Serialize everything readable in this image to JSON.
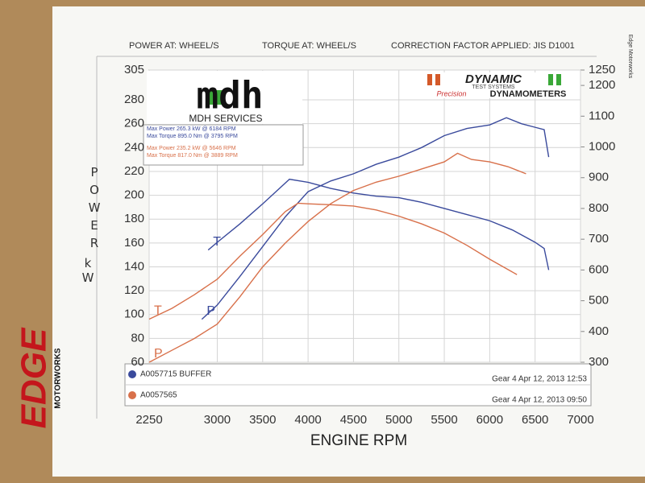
{
  "chart_data": {
    "type": "line",
    "header": [
      "POWER AT: WHEEL/S",
      "TORQUE AT: WHEEL/S",
      "CORRECTION FACTOR APPLIED: JIS D1001"
    ],
    "xlabel": "ENGINE RPM",
    "ylabel": "POWER",
    "ylabel_unit": "kW",
    "xlim": [
      2250,
      7000
    ],
    "xticks": [
      2250,
      3000,
      3500,
      4000,
      4500,
      5000,
      5500,
      6000,
      6500,
      7000
    ],
    "ylim": [
      60,
      305
    ],
    "yticks": [
      60,
      80,
      100,
      120,
      140,
      160,
      180,
      200,
      220,
      240,
      260,
      280,
      305
    ],
    "y2lim": [
      300,
      1250
    ],
    "y2ticks": [
      300,
      400,
      500,
      600,
      700,
      800,
      900,
      1000,
      1100,
      1200,
      1250
    ],
    "grid": true,
    "logos": {
      "mdh": "mdh",
      "mdh_name": "MDH SERVICES",
      "dynamic": "DYNAMIC",
      "dynamic_sub": "TEST SYSTEMS",
      "precision": "Precision",
      "dynamometers": "DYNAMOMETERS",
      "edge": "EDGE",
      "motorworks": "MOTORWORKS",
      "side": "Edge Motorworks"
    },
    "runs": [
      {
        "name": "A0057715 BUFFER",
        "color": "#3a4a9c",
        "timestamp": "Gear 4 Apr 12, 2013 12:53",
        "max_power": "Max Power 265.3 kW @ 6184 RPM",
        "max_torque": "Max Torque 895.0 Nm @ 3795 RPM",
        "power": {
          "label": "P",
          "x": [
            2830,
            3000,
            3250,
            3500,
            3750,
            4000,
            4250,
            4500,
            4750,
            5000,
            5250,
            5500,
            5750,
            6000,
            6184,
            6350,
            6500,
            6600,
            6650
          ],
          "values": [
            96,
            108,
            132,
            157,
            182,
            203,
            212,
            218,
            226,
            232,
            240,
            250,
            256,
            259,
            265,
            260,
            257,
            255,
            232
          ]
        },
        "torque": {
          "label": "T",
          "axis": "y2",
          "x": [
            2900,
            3000,
            3250,
            3500,
            3795,
            4000,
            4250,
            4500,
            4750,
            5000,
            5250,
            5500,
            5750,
            6000,
            6250,
            6500,
            6600,
            6650
          ],
          "values": [
            665,
            690,
            750,
            815,
            895,
            885,
            865,
            850,
            840,
            835,
            820,
            800,
            780,
            760,
            730,
            690,
            670,
            600
          ]
        }
      },
      {
        "name": "A0057565",
        "color": "#d8704a",
        "timestamp": "Gear 4 Apr 12, 2013 09:50",
        "max_power": "Max Power 235.2 kW @ 5646 RPM",
        "max_torque": "Max Torque 817.0 Nm @ 3889 RPM",
        "power": {
          "label": "P",
          "x": [
            2250,
            2500,
            2750,
            3000,
            3250,
            3500,
            3750,
            4000,
            4250,
            4500,
            4750,
            5000,
            5250,
            5500,
            5646,
            5800,
            6000,
            6200,
            6400
          ],
          "values": [
            60,
            70,
            80,
            92,
            115,
            140,
            160,
            178,
            193,
            204,
            211,
            216,
            222,
            228,
            235.2,
            230,
            228,
            224,
            218
          ]
        },
        "torque": {
          "label": "T",
          "axis": "y2",
          "x": [
            2250,
            2500,
            2750,
            3000,
            3250,
            3500,
            3750,
            3889,
            4000,
            4250,
            4500,
            4750,
            5000,
            5250,
            5500,
            5750,
            6000,
            6300
          ],
          "values": [
            440,
            475,
            520,
            570,
            645,
            715,
            790,
            817,
            815,
            812,
            808,
            795,
            775,
            750,
            720,
            680,
            635,
            585
          ]
        }
      }
    ]
  }
}
